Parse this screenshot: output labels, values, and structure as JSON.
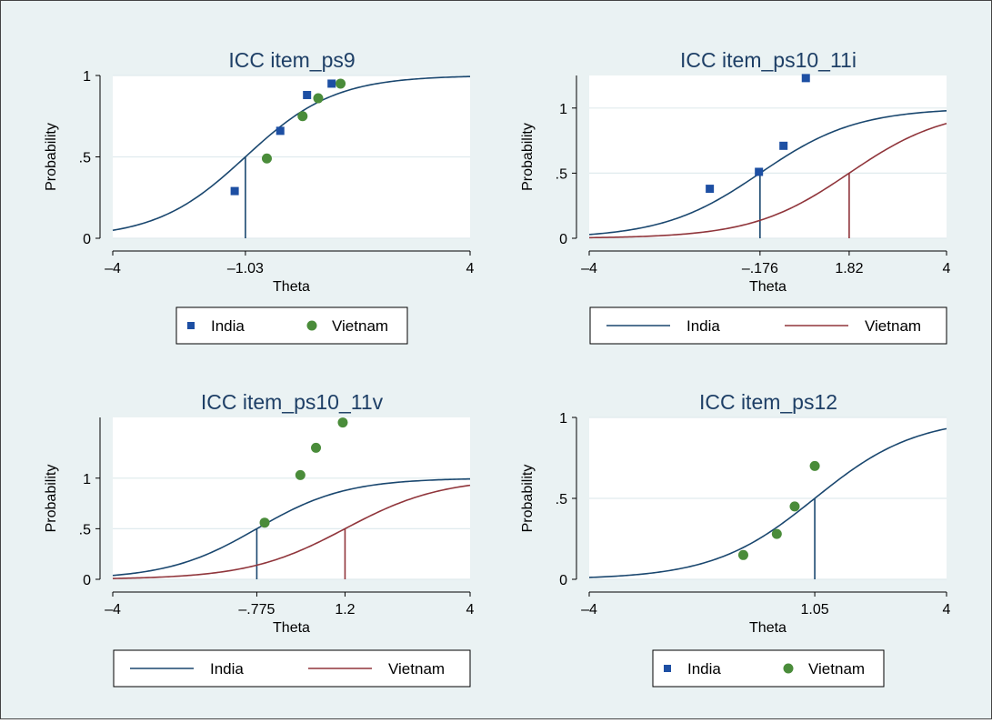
{
  "colors": {
    "background": "#eaf2f3",
    "plot_background": "#ffffff",
    "grid": "#e0ebee",
    "india": "#1a476f",
    "vietnam": "#90353b",
    "india_marker": "#1d4fa3",
    "vietnam_marker": "#4a8c3a"
  },
  "chart_data": [
    {
      "type": "line",
      "title": "ICC item_ps9",
      "xlabel": "Theta",
      "ylabel": "Probability",
      "xlim": [
        -4,
        4
      ],
      "ylim": [
        0,
        1
      ],
      "yticks": [
        {
          "v": 0,
          "label": "0"
        },
        {
          "v": 0.5,
          "label": ".5"
        },
        {
          "v": 1,
          "label": "1"
        }
      ],
      "xticks": [
        {
          "v": -4,
          "label": "–4"
        },
        {
          "v": -1.03,
          "label": "–1.03"
        },
        {
          "v": 4,
          "label": "4"
        }
      ],
      "curves": [
        {
          "group": "India",
          "a": 1.0,
          "b": -1.03
        }
      ],
      "observed": [
        {
          "group": "India",
          "x": -1.27,
          "y": 0.29
        },
        {
          "group": "Vietnam",
          "x": -0.55,
          "y": 0.49
        },
        {
          "group": "India",
          "x": -0.25,
          "y": 0.66
        },
        {
          "group": "Vietnam",
          "x": 0.25,
          "y": 0.75
        },
        {
          "group": "India",
          "x": 0.35,
          "y": 0.88
        },
        {
          "group": "Vietnam",
          "x": 0.6,
          "y": 0.86
        },
        {
          "group": "India",
          "x": 0.9,
          "y": 0.95
        },
        {
          "group": "Vietnam",
          "x": 1.1,
          "y": 0.95
        }
      ],
      "legend": {
        "style": "marker",
        "entries": [
          {
            "group": "India",
            "label": "India"
          },
          {
            "group": "Vietnam",
            "label": "Vietnam"
          }
        ]
      }
    },
    {
      "type": "line",
      "title": "ICC item_ps10_11i",
      "xlabel": "Theta",
      "ylabel": "Probability",
      "xlim": [
        -4,
        4
      ],
      "ylim": [
        0,
        1.25
      ],
      "yticks": [
        {
          "v": 0,
          "label": "0"
        },
        {
          "v": 0.5,
          "label": ".5"
        },
        {
          "v": 1,
          "label": "1"
        }
      ],
      "xticks": [
        {
          "v": -4,
          "label": "–4"
        },
        {
          "v": -0.176,
          "label": "–.176"
        },
        {
          "v": 1.82,
          "label": "1.82"
        },
        {
          "v": 4,
          "label": "4"
        }
      ],
      "curves": [
        {
          "group": "India",
          "a": 0.92,
          "b": -0.176
        },
        {
          "group": "Vietnam",
          "a": 0.92,
          "b": 1.82
        }
      ],
      "observed": [
        {
          "group": "India",
          "x": -1.3,
          "y": 0.38
        },
        {
          "group": "India",
          "x": -0.2,
          "y": 0.51
        },
        {
          "group": "India",
          "x": 0.35,
          "y": 0.71
        },
        {
          "group": "India",
          "x": 0.85,
          "y": 1.23
        }
      ],
      "legend": {
        "style": "line",
        "entries": [
          {
            "group": "India",
            "label": "India"
          },
          {
            "group": "Vietnam",
            "label": "Vietnam"
          }
        ]
      }
    },
    {
      "type": "line",
      "title": "ICC item_ps10_11v",
      "xlabel": "Theta",
      "ylabel": "Probability",
      "xlim": [
        -4,
        4
      ],
      "ylim": [
        0,
        1.6
      ],
      "yticks": [
        {
          "v": 0,
          "label": "0"
        },
        {
          "v": 0.5,
          "label": ".5"
        },
        {
          "v": 1,
          "label": "1"
        }
      ],
      "xticks": [
        {
          "v": -4,
          "label": "–4"
        },
        {
          "v": -0.775,
          "label": "–.775"
        },
        {
          "v": 1.2,
          "label": "1.2"
        },
        {
          "v": 4,
          "label": "4"
        }
      ],
      "curves": [
        {
          "group": "India",
          "a": 1.0,
          "b": -0.775
        },
        {
          "group": "Vietnam",
          "a": 0.92,
          "b": 1.2
        }
      ],
      "observed": [
        {
          "group": "Vietnam",
          "x": -0.6,
          "y": 0.56
        },
        {
          "group": "Vietnam",
          "x": 0.2,
          "y": 1.03
        },
        {
          "group": "Vietnam",
          "x": 0.55,
          "y": 1.3
        },
        {
          "group": "Vietnam",
          "x": 1.15,
          "y": 1.55
        }
      ],
      "legend": {
        "style": "line",
        "entries": [
          {
            "group": "India",
            "label": "India"
          },
          {
            "group": "Vietnam",
            "label": "Vietnam"
          }
        ]
      }
    },
    {
      "type": "line",
      "title": "ICC item_ps12",
      "xlabel": "Theta",
      "ylabel": "Probability",
      "xlim": [
        -4,
        4
      ],
      "ylim": [
        0,
        1
      ],
      "yticks": [
        {
          "v": 0,
          "label": "0"
        },
        {
          "v": 0.5,
          "label": ".5"
        },
        {
          "v": 1,
          "label": "1"
        }
      ],
      "xticks": [
        {
          "v": -4,
          "label": "–4"
        },
        {
          "v": 1.05,
          "label": "1.05"
        },
        {
          "v": 4,
          "label": "4"
        }
      ],
      "curves": [
        {
          "group": "India",
          "a": 0.88,
          "b": 1.05
        }
      ],
      "observed": [
        {
          "group": "Vietnam",
          "x": -0.55,
          "y": 0.15
        },
        {
          "group": "Vietnam",
          "x": 0.2,
          "y": 0.28
        },
        {
          "group": "Vietnam",
          "x": 0.6,
          "y": 0.45
        },
        {
          "group": "Vietnam",
          "x": 1.05,
          "y": 0.7
        }
      ],
      "legend": {
        "style": "marker",
        "entries": [
          {
            "group": "India",
            "label": "India"
          },
          {
            "group": "Vietnam",
            "label": "Vietnam"
          }
        ]
      }
    }
  ]
}
